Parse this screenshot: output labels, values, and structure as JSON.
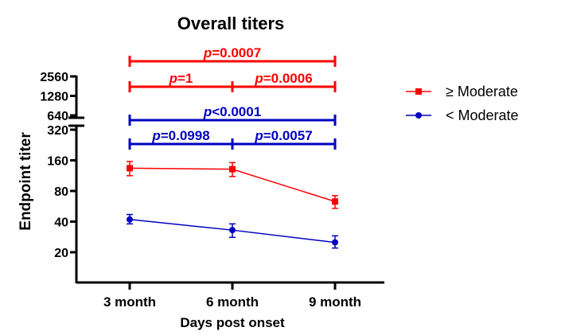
{
  "chart_data": {
    "type": "line",
    "title": "Overall titers",
    "xlabel": "Days post onset",
    "ylabel": "Endpoint titer",
    "categories": [
      "3 month",
      "6 month",
      "9 month"
    ],
    "y_scale": "log2",
    "y_ticks": [
      "20",
      "40",
      "80",
      "160",
      "320",
      "640",
      "1280",
      "2560"
    ],
    "y_axis_break": "between 320 and 640",
    "legend_position": "right",
    "series": [
      {
        "name": "≥ Moderate",
        "color": "#ff0000",
        "marker": "square",
        "values": [
          134,
          131,
          63
        ],
        "error_low": [
          113,
          111,
          54
        ],
        "error_high": [
          156,
          152,
          72
        ]
      },
      {
        "name": "< Moderate",
        "color": "#0000c0",
        "marker": "circle",
        "values": [
          42,
          33,
          25
        ],
        "error_low": [
          38,
          28,
          22
        ],
        "error_high": [
          47,
          38,
          29
        ]
      }
    ],
    "annotations": [
      {
        "label": "p",
        "value": "=0.0007",
        "from": "3 month",
        "to": "9 month",
        "color": "#ff0000",
        "row": "top"
      },
      {
        "label": "p",
        "value": "=1",
        "from": "3 month",
        "to": "6 month",
        "color": "#ff0000",
        "row": "second"
      },
      {
        "label": "p",
        "value": "=0.0006",
        "from": "6 month",
        "to": "9 month",
        "color": "#ff0000",
        "row": "second"
      },
      {
        "label": "p",
        "value": "<0.0001",
        "from": "3 month",
        "to": "9 month",
        "color": "#0000c0",
        "row": "third"
      },
      {
        "label": "p",
        "value": "=0.0998",
        "from": "3 month",
        "to": "6 month",
        "color": "#0000c0",
        "row": "fourth"
      },
      {
        "label": "p",
        "value": "=0.0057",
        "from": "6 month",
        "to": "9 month",
        "color": "#0000c0",
        "row": "fourth"
      }
    ]
  }
}
